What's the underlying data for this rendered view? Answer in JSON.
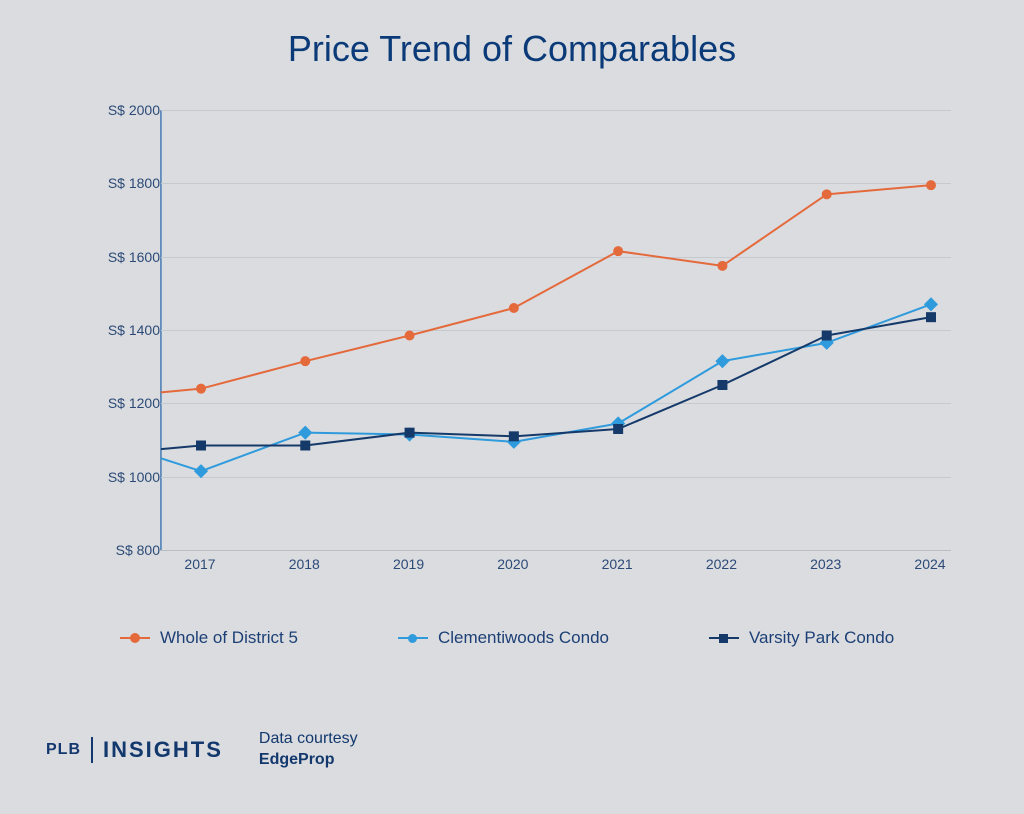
{
  "title": "Price Trend of Comparables",
  "chart": {
    "type": "line",
    "background_color": "#dbdce0",
    "title_color": "#0b3a78",
    "title_fontsize": 36,
    "axis_label_color": "#2b4a76",
    "axis_label_fontsize": 14,
    "grid_color": "#c6c9ce",
    "axis_line_color": "#b8bcc3",
    "y": {
      "min": 800,
      "max": 2000,
      "step": 200,
      "prefix": "S$ ",
      "ticks": [
        800,
        1000,
        1200,
        1400,
        1600,
        1800,
        2000
      ]
    },
    "x": {
      "categories": [
        "2017",
        "2018",
        "2019",
        "2020",
        "2021",
        "2022",
        "2023",
        "2024"
      ]
    },
    "series": [
      {
        "name": "Whole of District 5",
        "color": "#e46a3c",
        "marker": "circle",
        "marker_size": 5,
        "line_width": 2,
        "start_value": 1230,
        "values": [
          1240,
          1315,
          1385,
          1460,
          1615,
          1575,
          1770,
          1795
        ]
      },
      {
        "name": "Clementiwoods Condo",
        "color": "#2f9bdc",
        "marker": "diamond",
        "marker_size": 5,
        "line_width": 2,
        "start_value": 1050,
        "values": [
          1015,
          1120,
          1115,
          1095,
          1145,
          1315,
          1365,
          1470
        ]
      },
      {
        "name": "Varsity Park Condo",
        "color": "#153a6a",
        "marker": "square",
        "marker_size": 5,
        "line_width": 2,
        "start_value": 1075,
        "values": [
          1085,
          1085,
          1120,
          1110,
          1130,
          1250,
          1385,
          1435
        ]
      }
    ]
  },
  "legend": {
    "items": [
      "Whole of District 5",
      "Clementiwoods Condo",
      "Varsity Park Condo"
    ],
    "fontsize": 17,
    "text_color": "#1c3f75"
  },
  "footer": {
    "brand_small": "PLB",
    "brand_big": "INSIGHTS",
    "courtesy_line1": "Data courtesy",
    "courtesy_line2": "EdgeProp",
    "text_color": "#12386e"
  }
}
